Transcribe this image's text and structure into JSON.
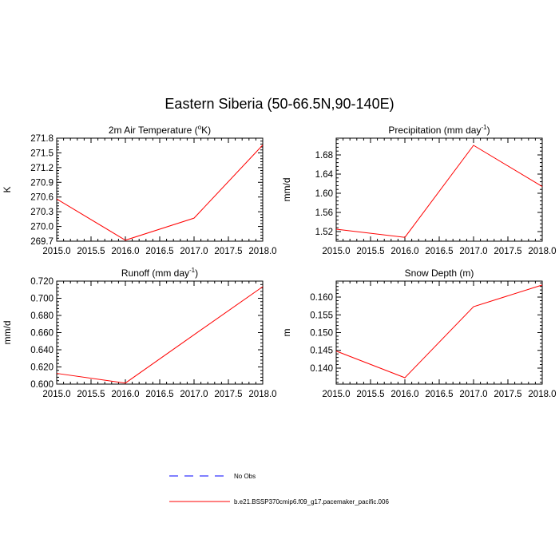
{
  "title": "Eastern Siberia (50-66.5N,90-140E)",
  "colors": {
    "model": "#ff0000",
    "obs": "#0000ff",
    "axis": "#000000"
  },
  "legend": [
    {
      "label": "No Obs",
      "style": "dashed",
      "color": "#0000ff"
    },
    {
      "label": "b.e21.BSSP370cmip6.f09_g17.pacemaker_pacific.006",
      "style": "solid",
      "color": "#ff0000"
    }
  ],
  "chart_data": [
    {
      "type": "line",
      "title": {
        "pre": "2m Air Temperature (",
        "sup": "o",
        "post": "K)"
      },
      "ylabel": "K",
      "x": [
        2015,
        2016,
        2017,
        2018
      ],
      "xlim": [
        2015,
        2018
      ],
      "xticks": [
        "2015.0",
        "2015.5",
        "2016.0",
        "2016.5",
        "2017.0",
        "2017.5",
        "2018.0"
      ],
      "ylim": [
        269.7,
        271.8
      ],
      "yticks": [
        "269.7",
        "270.0",
        "270.3",
        "270.6",
        "270.9",
        "271.2",
        "271.5",
        "271.8"
      ],
      "series": [
        {
          "values": [
            270.56,
            269.72,
            270.17,
            271.66
          ]
        }
      ]
    },
    {
      "type": "line",
      "title": {
        "pre": "Precipitation (mm day",
        "sup": "-1",
        "post": ")"
      },
      "ylabel": "mm/d",
      "x": [
        2015,
        2016,
        2017,
        2018
      ],
      "xlim": [
        2015,
        2018
      ],
      "xticks": [
        "2015.0",
        "2015.5",
        "2016.0",
        "2016.5",
        "2017.0",
        "2017.5",
        "2018.0"
      ],
      "ylim": [
        1.5,
        1.715
      ],
      "yticks": [
        "1.52",
        "1.56",
        "1.60",
        "1.64",
        "1.68"
      ],
      "series": [
        {
          "values": [
            1.525,
            1.508,
            1.7,
            1.614
          ]
        }
      ]
    },
    {
      "type": "line",
      "title": {
        "pre": "Runoff (mm day",
        "sup": "-1",
        "post": ")"
      },
      "ylabel": "mm/d",
      "x": [
        2015,
        2016,
        2017,
        2018
      ],
      "xlim": [
        2015,
        2018
      ],
      "xticks": [
        "2015.0",
        "2015.5",
        "2016.0",
        "2016.5",
        "2017.0",
        "2017.5",
        "2018.0"
      ],
      "ylim": [
        0.6,
        0.72
      ],
      "yticks": [
        "0.600",
        "0.620",
        "0.640",
        "0.660",
        "0.680",
        "0.700",
        "0.720"
      ],
      "series": [
        {
          "values": [
            0.6125,
            0.6012,
            0.6575,
            0.7135
          ]
        }
      ]
    },
    {
      "type": "line",
      "title": {
        "pre": "Snow Depth (m)",
        "sup": "",
        "post": ""
      },
      "ylabel": "m",
      "x": [
        2015,
        2016,
        2017,
        2018
      ],
      "xlim": [
        2015,
        2018
      ],
      "xticks": [
        "2015.0",
        "2015.5",
        "2016.0",
        "2016.5",
        "2017.0",
        "2017.5",
        "2018.0"
      ],
      "ylim": [
        0.1355,
        0.1645
      ],
      "yticks": [
        "0.140",
        "0.145",
        "0.150",
        "0.155",
        "0.160"
      ],
      "series": [
        {
          "values": [
            0.1448,
            0.1373,
            0.1573,
            0.1634
          ]
        }
      ]
    }
  ]
}
